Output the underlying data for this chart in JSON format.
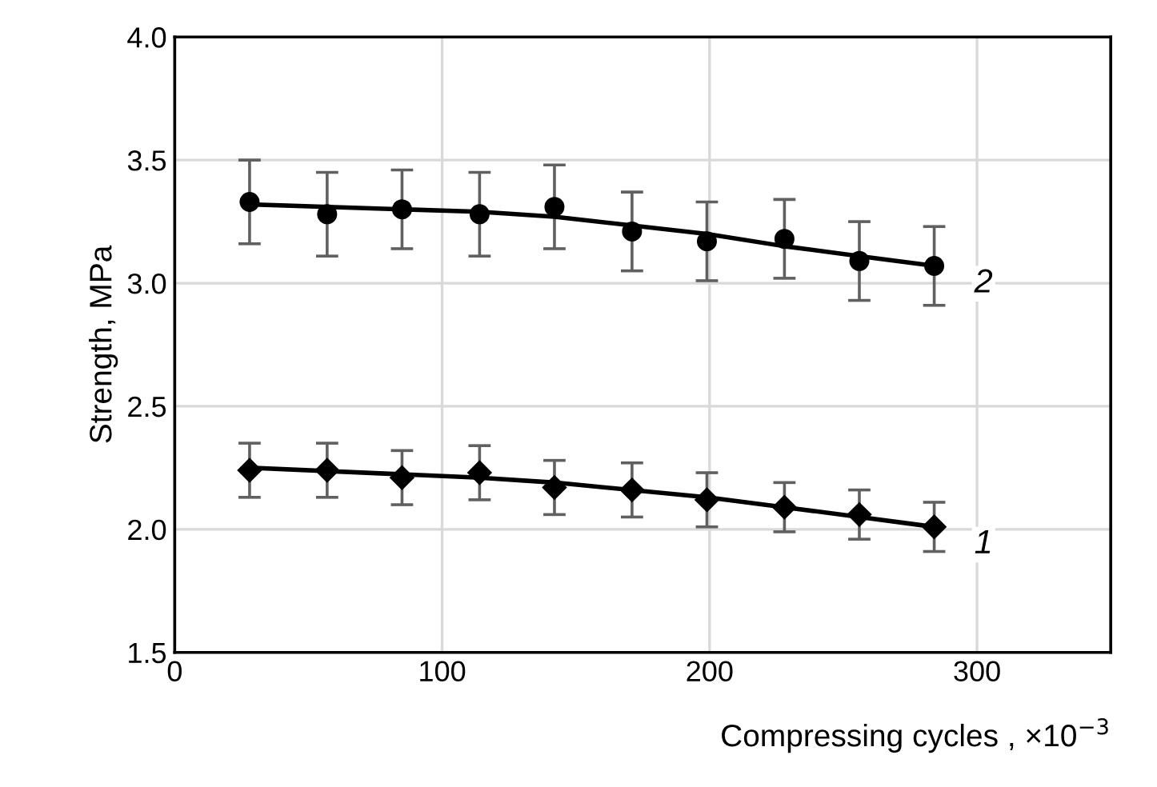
{
  "chart_data": {
    "type": "scatter",
    "xlabel": "Compressing cycles , ×10$^{−3}$",
    "ylabel": "Strength, MPa",
    "xlim": [
      0,
      350
    ],
    "xticks": [
      0,
      100,
      200,
      300
    ],
    "ylim": [
      1.5,
      4.0
    ],
    "yticks": [
      {
        "value": 1.5,
        "label": "1.5"
      },
      {
        "value": 2,
        "label": "2.0"
      },
      {
        "value": 2.5,
        "label": "2.5"
      },
      {
        "value": 3,
        "label": "3.0"
      },
      {
        "value": 3.5,
        "label": "3.5"
      },
      {
        "value": 4,
        "label": "4.0"
      }
    ],
    "grid": true,
    "legend": false,
    "series": [
      {
        "name": "2",
        "marker": "circle",
        "color": "#000000",
        "x": [
          28,
          57,
          85,
          114,
          142,
          171,
          199,
          228,
          256,
          284
        ],
        "values": [
          3.33,
          3.28,
          3.3,
          3.28,
          3.31,
          3.21,
          3.17,
          3.18,
          3.09,
          3.07
        ],
        "errors": [
          0.17,
          0.17,
          0.16,
          0.17,
          0.17,
          0.16,
          0.16,
          0.16,
          0.16,
          0.16
        ]
      },
      {
        "type": "line",
        "marker": "none",
        "color": "#000000",
        "x": [
          28,
          114,
          142,
          199,
          228,
          256,
          284
        ],
        "values": [
          3.32,
          3.29,
          3.27,
          3.2,
          3.15,
          3.11,
          3.07
        ]
      },
      {
        "name": "1",
        "marker": "diamond",
        "color": "#000000",
        "x": [
          28,
          57,
          85,
          114,
          142,
          171,
          199,
          228,
          256,
          284
        ],
        "values": [
          2.24,
          2.24,
          2.21,
          2.23,
          2.17,
          2.16,
          2.12,
          2.09,
          2.06,
          2.01
        ],
        "errors": [
          0.11,
          0.11,
          0.11,
          0.11,
          0.11,
          0.11,
          0.11,
          0.1,
          0.1,
          0.1
        ]
      },
      {
        "type": "line",
        "marker": "none",
        "color": "#000000",
        "x": [
          28,
          114,
          142,
          199,
          228,
          284
        ],
        "values": [
          2.25,
          2.21,
          2.19,
          2.13,
          2.09,
          2.01
        ]
      }
    ]
  }
}
